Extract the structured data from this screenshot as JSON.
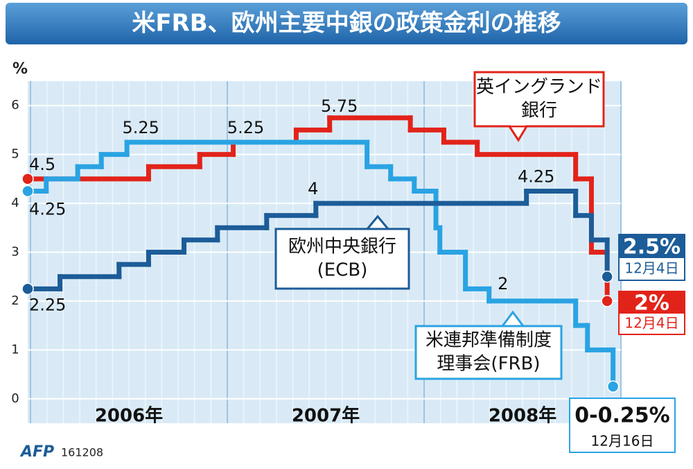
{
  "chart_data": {
    "type": "step",
    "title": "米FRB、欧州主要中銀の政策金利の推移",
    "y_label": "%",
    "xlim": [
      2006,
      2009
    ],
    "xticks": [
      {
        "value": 2006.5,
        "label": "2006年"
      },
      {
        "value": 2007.5,
        "label": "2007年"
      },
      {
        "value": 2008.5,
        "label": "2008年"
      }
    ],
    "ylim": [
      -0.5,
      6.5
    ],
    "yticks": [
      0,
      1,
      2,
      3,
      4,
      5,
      6
    ],
    "grid": true,
    "series": [
      {
        "name": [
          "英イングランド",
          "銀行"
        ],
        "color": "#e2231a",
        "x": [
          2006.0,
          2006.6,
          2006.86,
          2007.03,
          2007.35,
          2007.52,
          2007.93,
          2008.1,
          2008.27,
          2008.77,
          2008.85,
          2008.93
        ],
        "values": [
          4.5,
          4.75,
          5.0,
          5.25,
          5.5,
          5.75,
          5.5,
          5.25,
          5.0,
          4.5,
          3.0,
          2.0
        ],
        "value_labels": [
          "4.5",
          null,
          null,
          "5.25",
          null,
          "5.75",
          null,
          null,
          null,
          null,
          null,
          "2%"
        ],
        "end_date": "12月4日"
      },
      {
        "name": [
          "米連邦準備制度",
          "理事会(FRB)"
        ],
        "color": "#2aa3e3",
        "x": [
          2006.0,
          2006.08,
          2006.24,
          2006.36,
          2006.49,
          2007.71,
          2007.83,
          2007.95,
          2008.06,
          2008.08,
          2008.21,
          2008.33,
          2008.77,
          2008.83,
          2008.96
        ],
        "values": [
          4.25,
          4.5,
          4.75,
          5.0,
          5.25,
          4.75,
          4.5,
          4.25,
          3.5,
          3.0,
          2.25,
          2.0,
          1.5,
          1.0,
          0.25
        ],
        "value_labels": [
          "4.25",
          null,
          null,
          null,
          "5.25",
          null,
          null,
          null,
          null,
          null,
          null,
          "2",
          null,
          null,
          "0-0.25%"
        ],
        "end_date": "12月16日"
      },
      {
        "name": [
          "欧州中央銀行",
          "(ECB)"
        ],
        "color": "#1c5c98",
        "x": [
          2006.0,
          2006.15,
          2006.45,
          2006.6,
          2006.78,
          2006.95,
          2007.2,
          2007.45,
          2008.52,
          2008.77,
          2008.85,
          2008.93
        ],
        "values": [
          2.25,
          2.5,
          2.75,
          3.0,
          3.25,
          3.5,
          3.75,
          4.0,
          4.25,
          3.75,
          3.25,
          2.5
        ],
        "value_labels": [
          "2.25",
          null,
          null,
          null,
          null,
          null,
          null,
          "4",
          "4.25",
          null,
          null,
          "2.5%"
        ],
        "end_date": "12月4日"
      }
    ],
    "source": "AFP",
    "code": "161208"
  }
}
